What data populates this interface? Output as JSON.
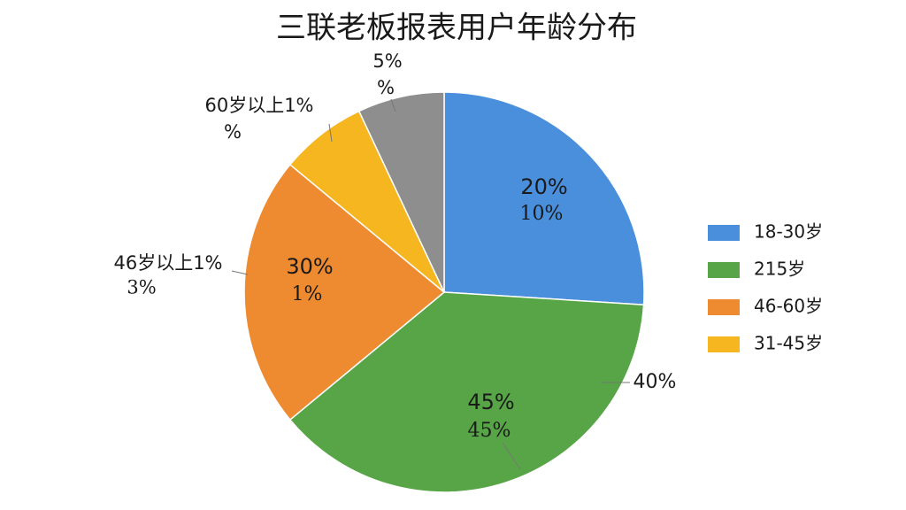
{
  "chart_data": {
    "type": "pie",
    "title": "三联老板报表用户年龄分布",
    "categories": [
      "18-30岁",
      "215岁",
      "46-60岁",
      "31-45岁",
      null
    ],
    "values": [
      26,
      38,
      22,
      7,
      7
    ],
    "colors": [
      "#4a8fdc",
      "#57a546",
      "#ee8a30",
      "#f6b620",
      "#8e8e8e"
    ],
    "annotations": [
      "20%",
      "10%",
      "45%",
      "45%",
      "30%",
      "1%",
      "60岁以上1%",
      "%",
      "5%",
      "%",
      "46岁以上1%",
      "3%",
      "40%"
    ],
    "legend": "right"
  }
}
